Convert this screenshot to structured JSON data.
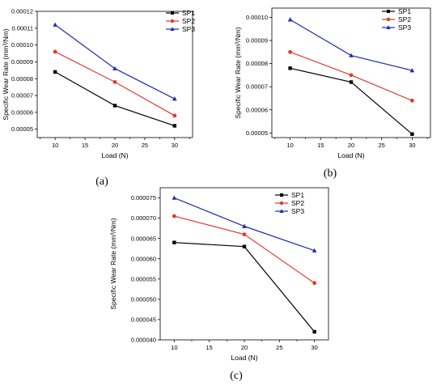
{
  "chart_data": [
    {
      "type": "line",
      "panel_label": "(a)",
      "xlabel": "Load (N)",
      "ylabel": "Specific Wear Rate (mm³/Nm)",
      "x": [
        10,
        20,
        30
      ],
      "xlim": [
        7,
        33
      ],
      "ylim": [
        4.5e-05,
        0.00012
      ],
      "xticks": [
        "10",
        "15",
        "20",
        "25",
        "30"
      ],
      "yticks": [
        "0.00005",
        "0.00006",
        "0.00007",
        "0.00008",
        "0.00009",
        "0.00010",
        "0.00011",
        "0.00012"
      ],
      "legend_position": "top-right",
      "series": [
        {
          "name": "SP1",
          "color": "#000000",
          "marker": "square",
          "values": [
            8.4e-05,
            6.4e-05,
            5.2e-05
          ]
        },
        {
          "name": "SP2",
          "color": "#e03a2f",
          "marker": "circle",
          "values": [
            9.6e-05,
            7.8e-05,
            5.8e-05
          ]
        },
        {
          "name": "SP3",
          "color": "#1f2ab5",
          "marker": "triangle",
          "values": [
            0.000112,
            8.6e-05,
            6.8e-05
          ]
        }
      ]
    },
    {
      "type": "line",
      "panel_label": "(b)",
      "xlabel": "Load (N)",
      "ylabel": "Specific Wear Rate (mm³/Nm)",
      "x": [
        10,
        20,
        30
      ],
      "xlim": [
        7,
        33
      ],
      "ylim": [
        4.8e-05,
        0.000104
      ],
      "xticks": [
        "10",
        "15",
        "20",
        "25",
        "30"
      ],
      "yticks": [
        "0.00005",
        "0.00006",
        "0.00007",
        "0.00008",
        "0.00009",
        "0.00010"
      ],
      "legend_position": "top-right",
      "series": [
        {
          "name": "SP1",
          "color": "#000000",
          "marker": "square",
          "values": [
            7.8e-05,
            7.2e-05,
            4.95e-05
          ]
        },
        {
          "name": "SP2",
          "color": "#e03a2f",
          "marker": "circle",
          "values": [
            8.5e-05,
            7.5e-05,
            6.4e-05
          ]
        },
        {
          "name": "SP3",
          "color": "#1f2ab5",
          "marker": "triangle",
          "values": [
            9.9e-05,
            8.35e-05,
            7.7e-05
          ]
        }
      ]
    },
    {
      "type": "line",
      "panel_label": "(c)",
      "xlabel": "Load (N)",
      "ylabel": "Specific Wear Rate (mm³/Nm)",
      "x": [
        10,
        20,
        30
      ],
      "xlim": [
        8,
        32
      ],
      "ylim": [
        4e-05,
        7.75e-05
      ],
      "xticks": [
        "10",
        "15",
        "20",
        "25",
        "30"
      ],
      "yticks": [
        "0.000040",
        "0.000045",
        "0.000050",
        "0.000055",
        "0.000060",
        "0.000065",
        "0.000070",
        "0.000075"
      ],
      "legend_position": "top-right",
      "series": [
        {
          "name": "SP1",
          "color": "#000000",
          "marker": "square",
          "values": [
            6.4e-05,
            6.3e-05,
            4.2e-05
          ]
        },
        {
          "name": "SP2",
          "color": "#e03a2f",
          "marker": "circle",
          "values": [
            7.05e-05,
            6.6e-05,
            5.4e-05
          ]
        },
        {
          "name": "SP3",
          "color": "#1f2ab5",
          "marker": "triangle",
          "values": [
            7.5e-05,
            6.8e-05,
            6.2e-05
          ]
        }
      ]
    }
  ]
}
